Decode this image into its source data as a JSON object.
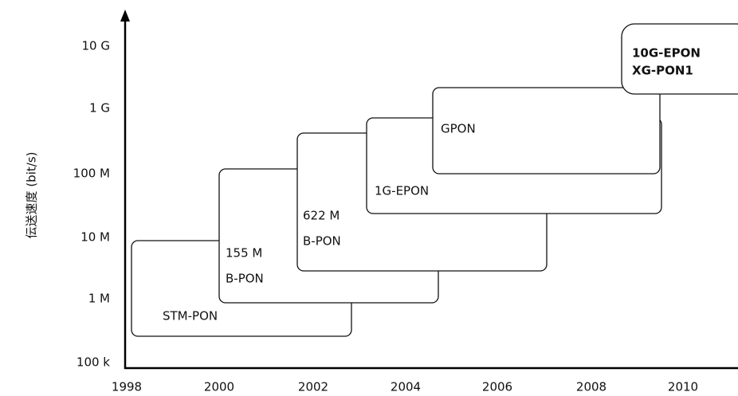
{
  "y_axis": {
    "title": "伝送速度 (bit/s)",
    "ticks": [
      "10 G",
      "1 G",
      "100 M",
      "10 M",
      "1 M",
      "100 k"
    ]
  },
  "x_axis": {
    "ticks": [
      "1998",
      "2000",
      "2002",
      "2004",
      "2006",
      "2008",
      "2010"
    ]
  },
  "boxes": [
    {
      "lines": [
        "STM-PON"
      ]
    },
    {
      "lines": [
        "155 M",
        "B-PON"
      ]
    },
    {
      "lines": [
        "622 M",
        "B-PON"
      ]
    },
    {
      "lines": [
        "1G-EPON"
      ]
    },
    {
      "lines": [
        "GPON"
      ]
    },
    {
      "lines": [
        "10G-EPON",
        "XG-PON1"
      ]
    }
  ]
}
